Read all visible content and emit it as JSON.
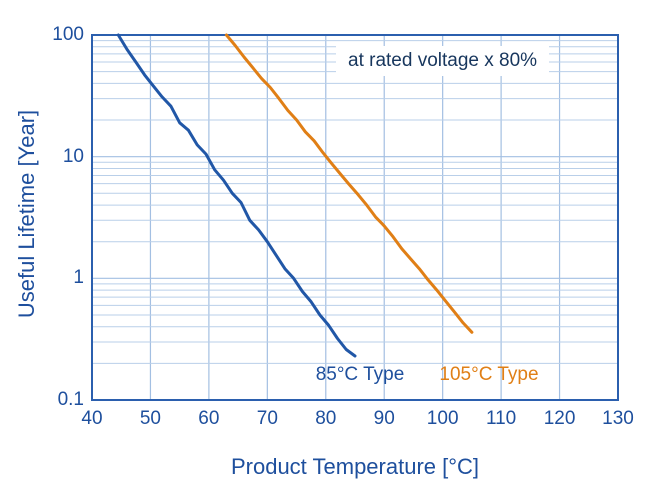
{
  "colors": {
    "axis_text": "#1e4f9d",
    "grid_minor": "#b9cfe9",
    "grid_major": "#a3bfe2",
    "frame": "#2b5fae",
    "annotation_text": "#17365d",
    "background": "#ffffff"
  },
  "chart_data": {
    "type": "line",
    "title": "",
    "xlabel": "Product Temperature [°C]",
    "ylabel": "Useful Lifetime [Year]",
    "annotation": "at rated voltage x 80%",
    "x_axis": {
      "min": 40,
      "max": 130,
      "scale": "linear"
    },
    "y_axis": {
      "min": 0.1,
      "max": 100,
      "scale": "log"
    },
    "grid": "on",
    "legend_position": "inside-bottom",
    "x_ticks": [
      {
        "v": 40,
        "label": "40"
      },
      {
        "v": 50,
        "label": "50"
      },
      {
        "v": 60,
        "label": "60"
      },
      {
        "v": 70,
        "label": "70"
      },
      {
        "v": 80,
        "label": "80"
      },
      {
        "v": 90,
        "label": "90"
      },
      {
        "v": 100,
        "label": "100"
      },
      {
        "v": 110,
        "label": "110"
      },
      {
        "v": 120,
        "label": "120"
      },
      {
        "v": 130,
        "label": "130"
      }
    ],
    "y_ticks": [
      {
        "v": 0.1,
        "label": "0.1"
      },
      {
        "v": 1,
        "label": "1"
      },
      {
        "v": 10,
        "label": "10"
      },
      {
        "v": 100,
        "label": "100"
      }
    ],
    "series": [
      {
        "name": "85°C Type",
        "color": "#2157a7",
        "points": [
          [
            44.5,
            100
          ],
          [
            46,
            76
          ],
          [
            47.5,
            60
          ],
          [
            49,
            47
          ],
          [
            50.5,
            38
          ],
          [
            52,
            31
          ],
          [
            53.5,
            26
          ],
          [
            55,
            19
          ],
          [
            56.5,
            16.5
          ],
          [
            58,
            12.5
          ],
          [
            59.5,
            10.5
          ],
          [
            61,
            7.8
          ],
          [
            62.5,
            6.4
          ],
          [
            64,
            5.0
          ],
          [
            65.5,
            4.2
          ],
          [
            67,
            3.0
          ],
          [
            68.5,
            2.5
          ],
          [
            70,
            2.0
          ],
          [
            71.5,
            1.55
          ],
          [
            73,
            1.2
          ],
          [
            74.5,
            1.0
          ],
          [
            76,
            0.78
          ],
          [
            77.5,
            0.64
          ],
          [
            79,
            0.5
          ],
          [
            80.5,
            0.41
          ],
          [
            82,
            0.32
          ],
          [
            83.5,
            0.26
          ],
          [
            85,
            0.23
          ]
        ]
      },
      {
        "name": "105°C Type",
        "color": "#e07f16",
        "points": [
          [
            63,
            100
          ],
          [
            64.5,
            82
          ],
          [
            66,
            66
          ],
          [
            67.5,
            54
          ],
          [
            69,
            44
          ],
          [
            70.5,
            37
          ],
          [
            72,
            30
          ],
          [
            73.5,
            24
          ],
          [
            75,
            20
          ],
          [
            76.5,
            16
          ],
          [
            78,
            13.5
          ],
          [
            79.5,
            10.8
          ],
          [
            81,
            8.8
          ],
          [
            82.5,
            7.2
          ],
          [
            84,
            5.9
          ],
          [
            85.5,
            4.9
          ],
          [
            87,
            4.0
          ],
          [
            88.5,
            3.2
          ],
          [
            90,
            2.7
          ],
          [
            91.5,
            2.2
          ],
          [
            93,
            1.75
          ],
          [
            94.5,
            1.45
          ],
          [
            96,
            1.2
          ],
          [
            97.5,
            0.97
          ],
          [
            99,
            0.8
          ],
          [
            100.5,
            0.65
          ],
          [
            102,
            0.53
          ],
          [
            103.5,
            0.43
          ],
          [
            105,
            0.36
          ]
        ]
      }
    ]
  }
}
